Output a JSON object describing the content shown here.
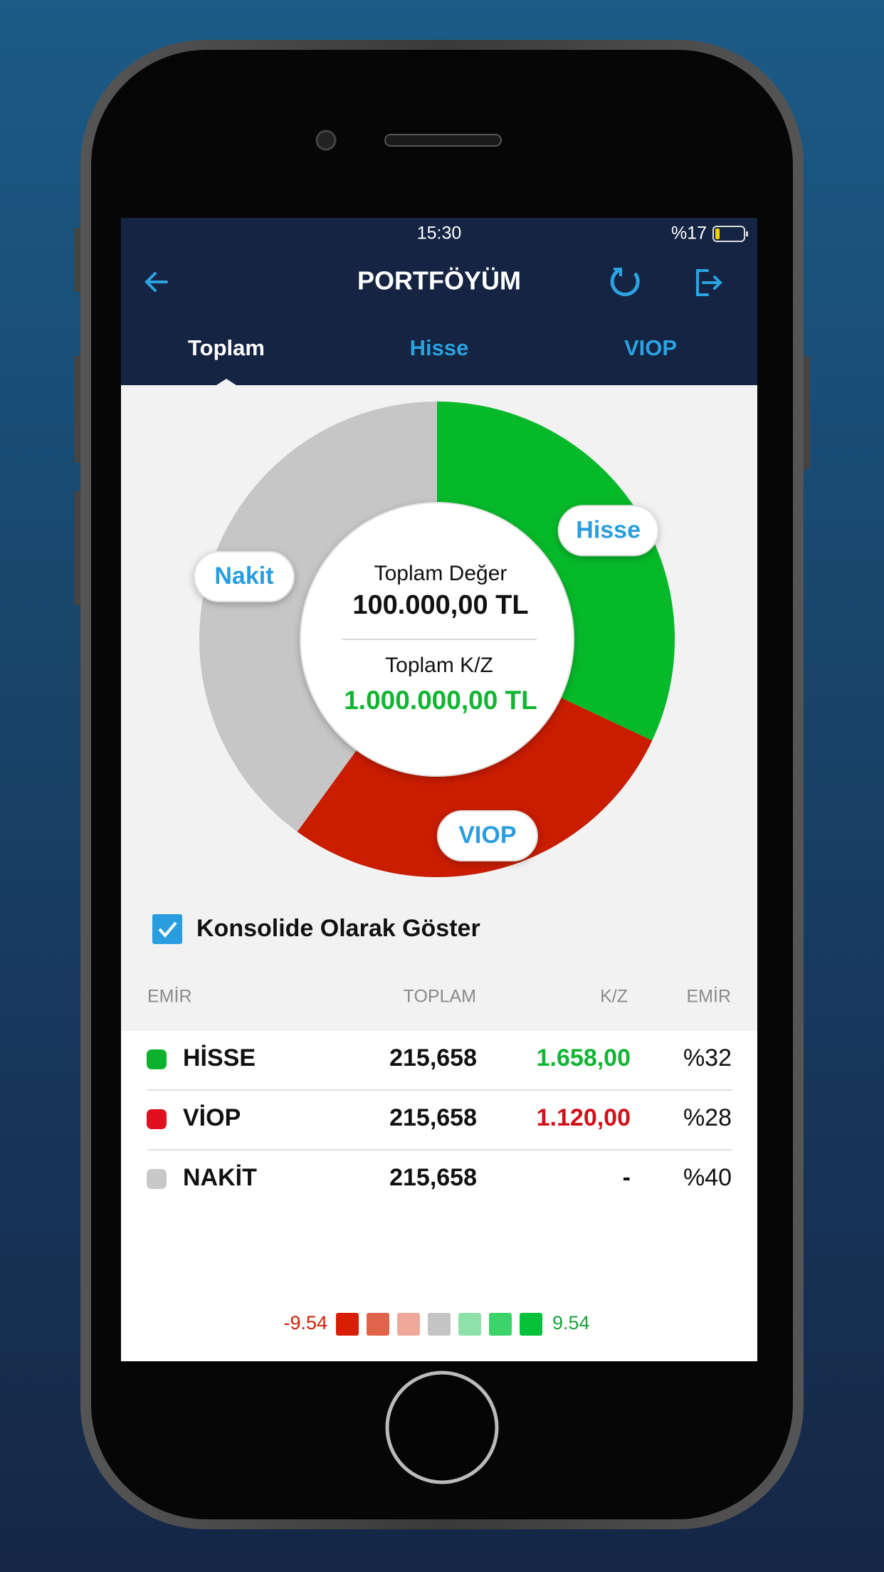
{
  "status_bar": {
    "time": "15:30",
    "battery": "%17"
  },
  "header": {
    "title": "PORTFÖYÜM"
  },
  "tabs": [
    "Toplam",
    "Hisse",
    "VIOP"
  ],
  "summary": {
    "value_label": "Toplam Değer",
    "value": "100.000,00 TL",
    "pl_label": "Toplam K/Z",
    "pl": "1.000.000,00 TL"
  },
  "checkbox": {
    "label": "Konsolide Olarak Göster",
    "checked": true
  },
  "table": {
    "columns": [
      "EMİR",
      "TOPLAM",
      "K/Z",
      "EMİR"
    ],
    "rows": [
      {
        "name": "HİSSE",
        "chart_label": "Hisse",
        "total": "215,658",
        "pl": "1.658,00",
        "pl_color": "#12b533",
        "share": 32,
        "share_label": "%32",
        "color": "#05b929",
        "dot_color": "#0cb22e"
      },
      {
        "name": "VİOP",
        "chart_label": "VIOP",
        "total": "215,658",
        "pl": "1.120,00",
        "pl_color": "#d0101a",
        "share": 28,
        "share_label": "%28",
        "color": "#c91c00",
        "dot_color": "#e0101e"
      },
      {
        "name": "NAKİT",
        "chart_label": "Nakit",
        "total": "215,658",
        "pl": "-",
        "pl_color": "#111111",
        "share": 40,
        "share_label": "%40",
        "color": "#c6c6c6",
        "dot_color": "#c8c8c8"
      }
    ]
  },
  "scale": {
    "min": -9.54,
    "max": 9.54,
    "colors": [
      "#d81e05",
      "#e0644a",
      "#eea99a",
      "#c4c4c4",
      "#8fe0a9",
      "#3dd36b",
      "#08c13a"
    ]
  }
}
